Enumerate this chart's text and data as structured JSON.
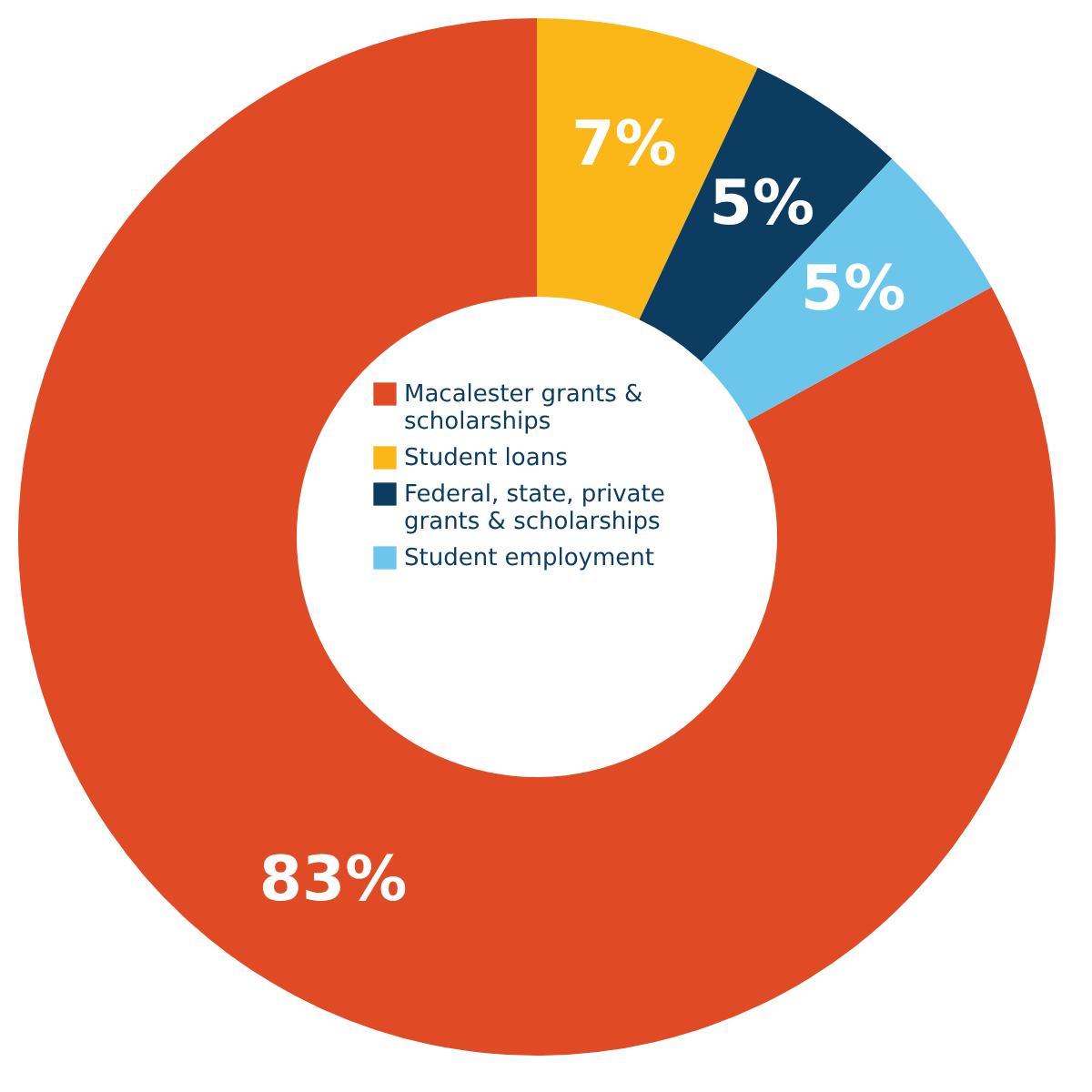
{
  "chart_data": {
    "type": "donut",
    "categories": [
      "Macalester grants & scholarships",
      "Student loans",
      "Federal, state, private grants & scholarships",
      "Student employment"
    ],
    "values": [
      83,
      7,
      5,
      5
    ],
    "colors": [
      "#e04a24",
      "#fbb617",
      "#0d3c61",
      "#6cc5ea"
    ],
    "value_labels": [
      "83%",
      "7%",
      "5%",
      "5%"
    ],
    "legend": "center"
  }
}
